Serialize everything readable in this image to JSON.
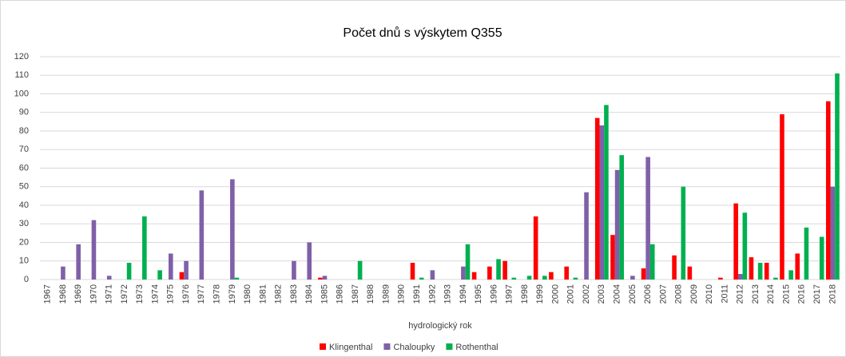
{
  "chart_data": {
    "type": "bar",
    "title": "Počet dnů s výskytem Q355",
    "x_label": "hydrologický rok",
    "categories": [
      "1967",
      "1968",
      "1969",
      "1970",
      "1971",
      "1972",
      "1973",
      "1974",
      "1975",
      "1976",
      "1977",
      "1978",
      "1979",
      "1980",
      "1981",
      "1982",
      "1983",
      "1984",
      "1985",
      "1986",
      "1987",
      "1988",
      "1989",
      "1990",
      "1991",
      "1992",
      "1993",
      "1994",
      "1995",
      "1996",
      "1997",
      "1998",
      "1999",
      "2000",
      "2001",
      "2002",
      "2003",
      "2004",
      "2005",
      "2006",
      "2007",
      "2008",
      "2009",
      "2010",
      "2011",
      "2012",
      "2013",
      "2014",
      "2015",
      "2016",
      "2017",
      "2018"
    ],
    "series": [
      {
        "name": "Klingenthal",
        "color": "#ff0000",
        "values": [
          0,
          0,
          0,
          0,
          0,
          0,
          0,
          0,
          0,
          4,
          0,
          0,
          0,
          0,
          0,
          0,
          0,
          0,
          1,
          0,
          0,
          0,
          0,
          0,
          9,
          0,
          0,
          0,
          4,
          7,
          10,
          0,
          34,
          4,
          7,
          0,
          87,
          24,
          0,
          6,
          0,
          13,
          7,
          0,
          1,
          41,
          12,
          9,
          89,
          14,
          0,
          96
        ]
      },
      {
        "name": "Chaloupky",
        "color": "#7f60a8",
        "values": [
          0,
          7,
          19,
          32,
          2,
          0,
          0,
          0,
          14,
          10,
          48,
          0,
          54,
          0,
          0,
          0,
          10,
          20,
          2,
          0,
          0,
          0,
          0,
          0,
          0,
          5,
          0,
          7,
          0,
          0,
          0,
          0,
          0,
          0,
          0,
          47,
          83,
          59,
          2,
          66,
          0,
          0,
          0,
          0,
          0,
          3,
          0,
          0,
          0,
          0,
          0,
          50
        ]
      },
      {
        "name": "Rothenthal",
        "color": "#00b050",
        "values": [
          0,
          0,
          0,
          0,
          0,
          9,
          34,
          5,
          0,
          0,
          0,
          0,
          1,
          0,
          0,
          0,
          0,
          0,
          0,
          0,
          10,
          0,
          0,
          0,
          1,
          0,
          0,
          19,
          0,
          11,
          1,
          2,
          2,
          0,
          1,
          0,
          94,
          67,
          0,
          19,
          0,
          50,
          0,
          0,
          0,
          36,
          9,
          1,
          5,
          28,
          23,
          111
        ]
      }
    ],
    "ylim": [
      0,
      120
    ],
    "yticks": [
      0,
      10,
      20,
      30,
      40,
      50,
      60,
      70,
      80,
      90,
      100,
      110,
      120
    ],
    "grid": true,
    "legend": "bottom"
  }
}
